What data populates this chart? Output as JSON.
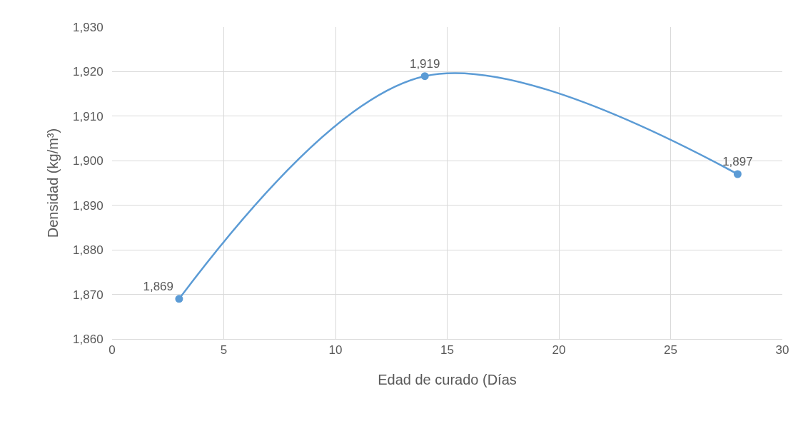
{
  "chart_data": {
    "type": "line",
    "xlabel": "Edad de curado (Días",
    "ylabel": "Densidad (kg/m³)",
    "x": [
      3,
      14,
      28
    ],
    "series": [
      {
        "color": "#5b9bd5",
        "values": [
          1869,
          1919,
          1897
        ],
        "value_labels": [
          "1,869",
          "1,919",
          "1,897"
        ]
      }
    ],
    "xlim": [
      0,
      30
    ],
    "xticks": [
      0,
      5,
      10,
      15,
      20,
      25,
      30
    ],
    "ylim": [
      1860,
      1930
    ],
    "yticks": [
      {
        "value": 1860,
        "label": "1,860"
      },
      {
        "value": 1870,
        "label": "1,870"
      },
      {
        "value": 1880,
        "label": "1,880"
      },
      {
        "value": 1890,
        "label": "1,890"
      },
      {
        "value": 1900,
        "label": "1,900"
      },
      {
        "value": 1910,
        "label": "1,910"
      },
      {
        "value": 1920,
        "label": "1,920"
      },
      {
        "value": 1930,
        "label": "1,930"
      }
    ],
    "grid": true,
    "marker": "circle",
    "line_style": "solid",
    "legend": false
  }
}
